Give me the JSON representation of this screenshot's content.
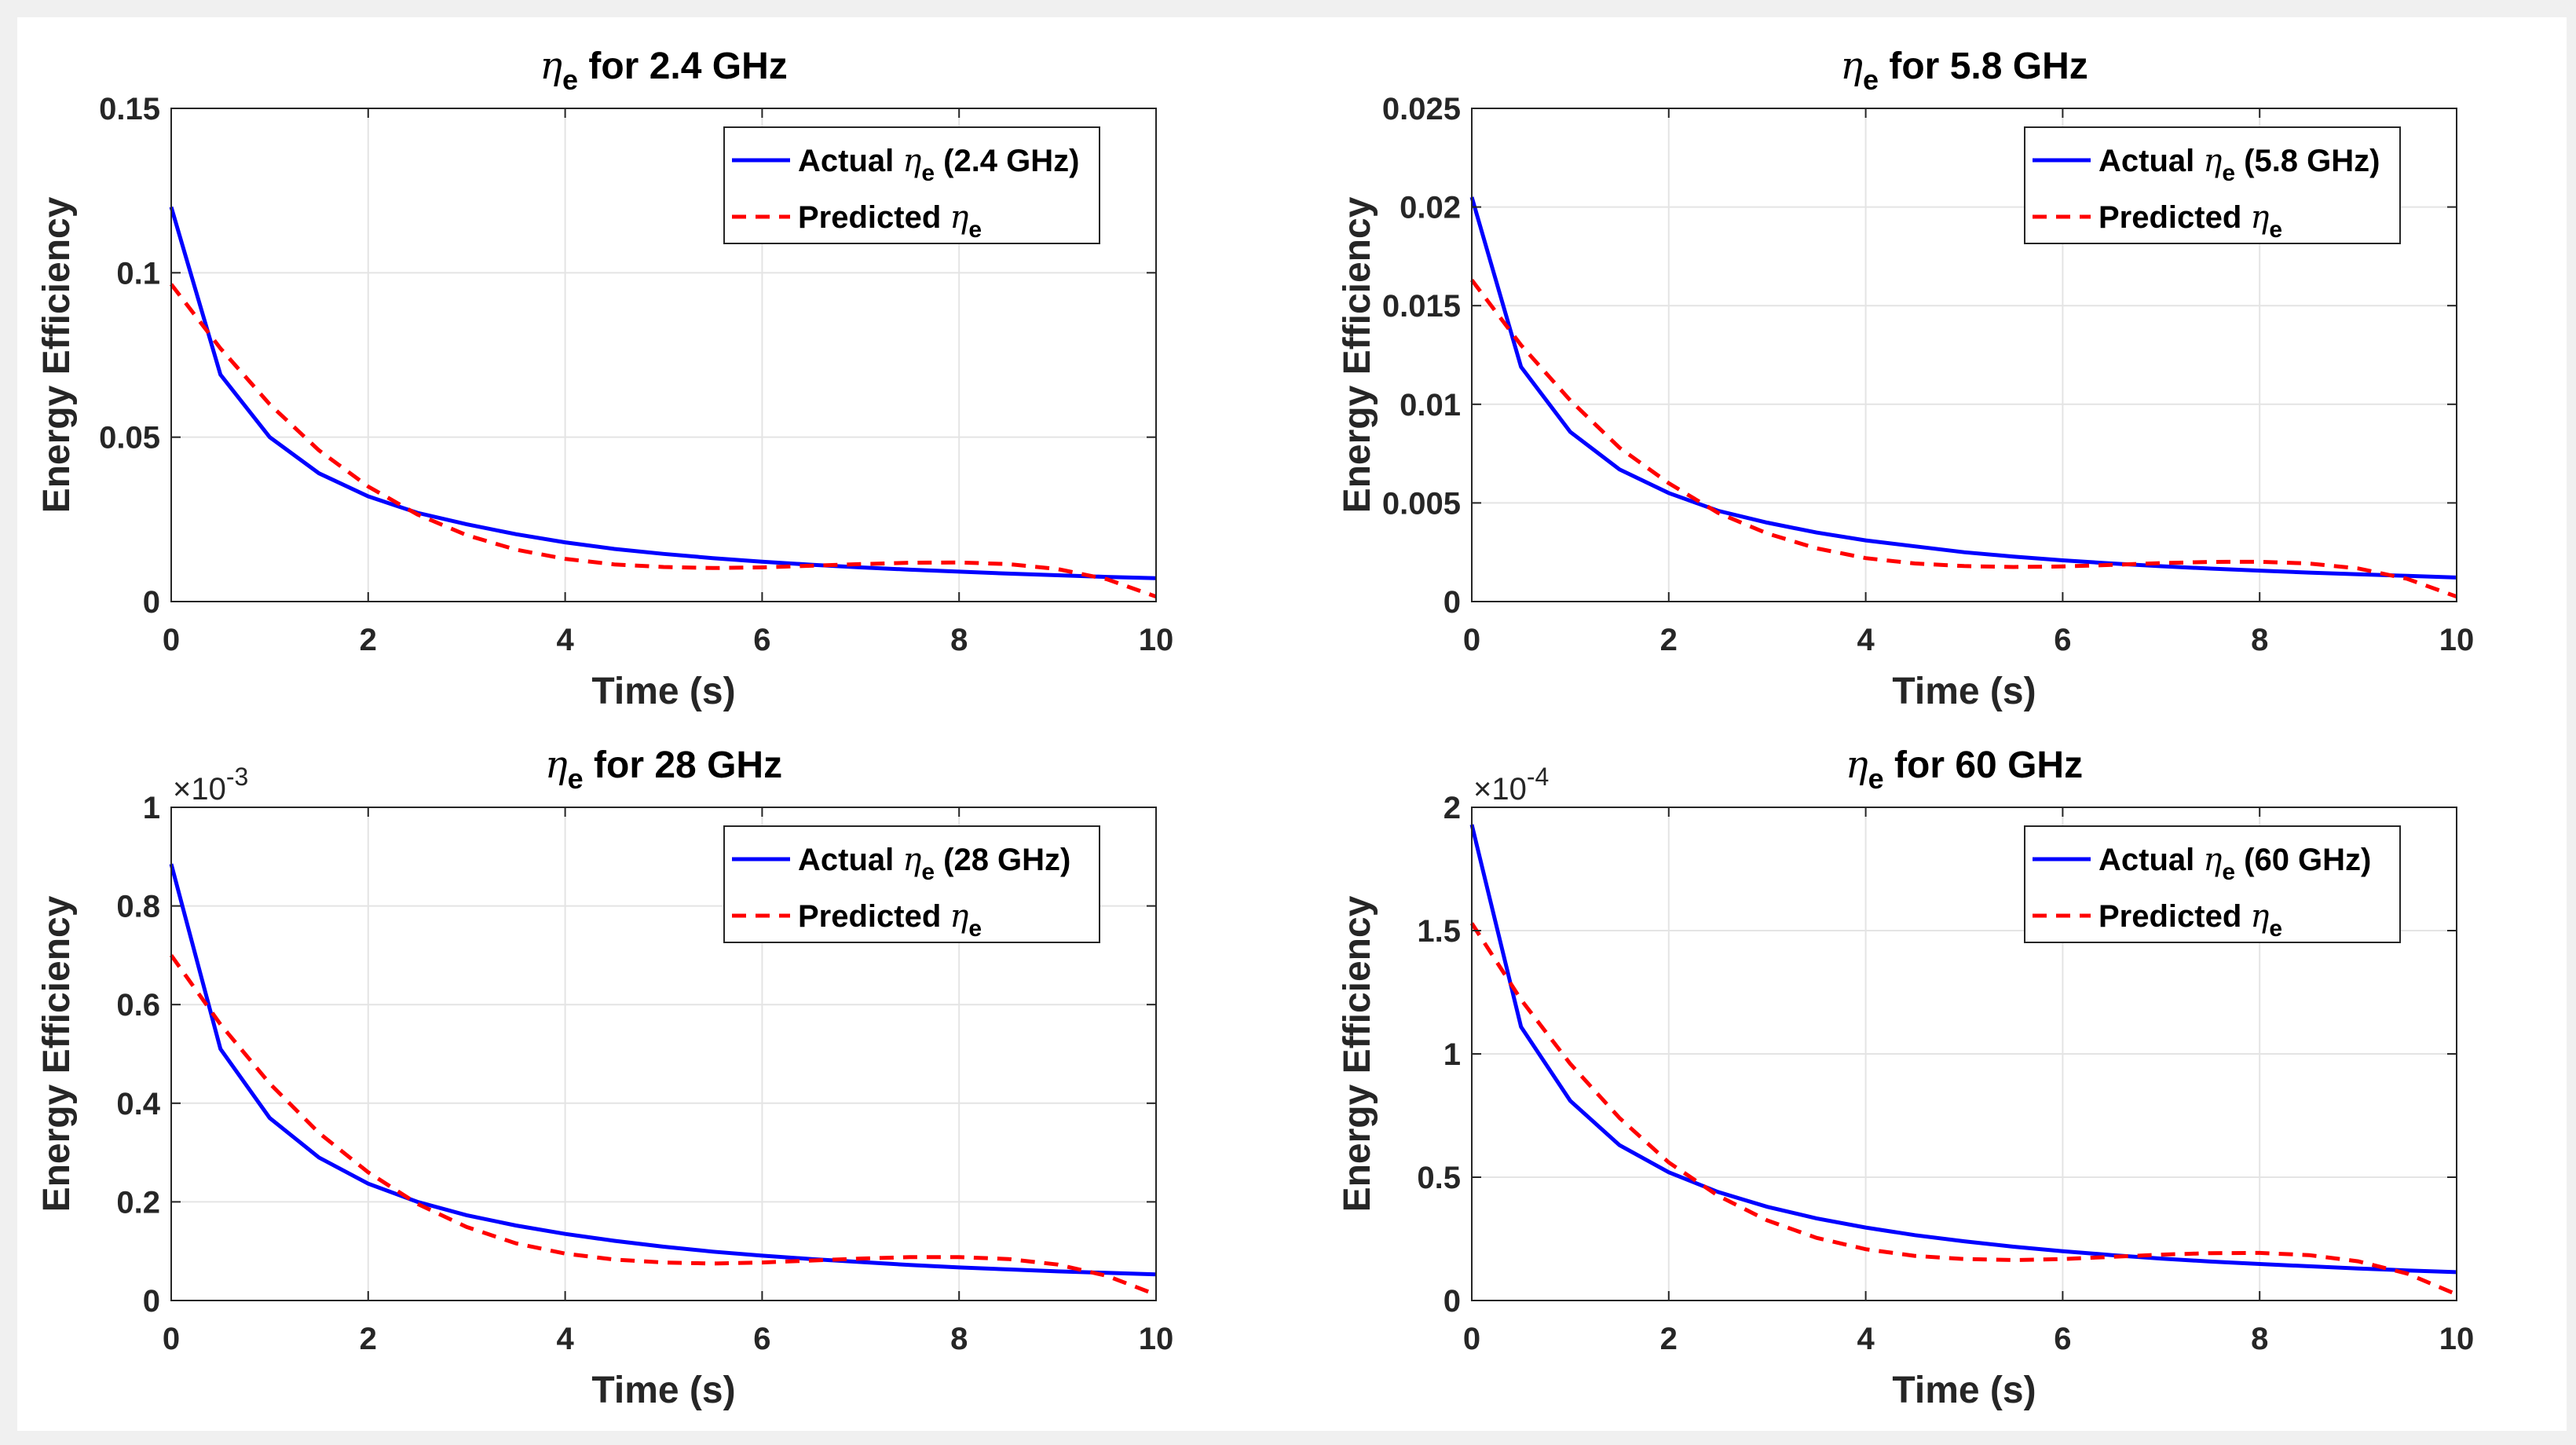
{
  "chart_data": [
    {
      "type": "line",
      "title": "η_e for 2.4 GHz",
      "title_symbol": "η",
      "title_subscript": "e",
      "title_suffix": " for 2.4 GHz",
      "xlabel": "Time (s)",
      "ylabel": "Energy Efficiency",
      "xlim": [
        0,
        10
      ],
      "ylim": [
        0,
        0.15
      ],
      "xticks": [
        0,
        2,
        4,
        6,
        8,
        10
      ],
      "xtick_labels": [
        "0",
        "2",
        "4",
        "6",
        "8",
        "10"
      ],
      "yticks": [
        0,
        0.05,
        0.1,
        0.15
      ],
      "ytick_labels": [
        "0",
        "0.05",
        "0.1",
        "0.15"
      ],
      "y_exponent": null,
      "grid": true,
      "legend_position": "top-right",
      "x": [
        0,
        0.5,
        1,
        1.5,
        2,
        2.5,
        3,
        3.5,
        4,
        4.5,
        5,
        5.5,
        6,
        6.5,
        7,
        7.5,
        8,
        8.5,
        9,
        9.5,
        10
      ],
      "series": [
        {
          "name": "Actual",
          "legend_prefix": "Actual ",
          "legend_symbol": "η",
          "legend_subscript": "e",
          "legend_suffix": " (2.4 GHz)",
          "color": "#0000ff",
          "style": "solid",
          "values": [
            0.12,
            0.069,
            0.05,
            0.039,
            0.032,
            0.027,
            0.0235,
            0.0205,
            0.018,
            0.016,
            0.0145,
            0.0132,
            0.0121,
            0.0112,
            0.0104,
            0.0097,
            0.0091,
            0.0085,
            0.008,
            0.0075,
            0.0071
          ]
        },
        {
          "name": "Predicted",
          "legend_prefix": "Predicted ",
          "legend_symbol": "η",
          "legend_subscript": "e",
          "legend_suffix": "",
          "color": "#ff0000",
          "style": "dashed",
          "values": [
            0.0965,
            0.077,
            0.06,
            0.046,
            0.035,
            0.0265,
            0.0202,
            0.0158,
            0.013,
            0.0113,
            0.0105,
            0.0102,
            0.0104,
            0.0109,
            0.0114,
            0.0118,
            0.0119,
            0.0114,
            0.0099,
            0.0068,
            0.0015
          ]
        }
      ]
    },
    {
      "type": "line",
      "title": "η_e for 5.8 GHz",
      "title_symbol": "η",
      "title_subscript": "e",
      "title_suffix": " for 5.8 GHz",
      "xlabel": "Time (s)",
      "ylabel": "Energy Efficiency",
      "xlim": [
        0,
        10
      ],
      "ylim": [
        0,
        0.025
      ],
      "xticks": [
        0,
        2,
        4,
        6,
        8,
        10
      ],
      "xtick_labels": [
        "0",
        "2",
        "4",
        "6",
        "8",
        "10"
      ],
      "yticks": [
        0,
        0.005,
        0.01,
        0.015,
        0.02,
        0.025
      ],
      "ytick_labels": [
        "0",
        "0.005",
        "0.01",
        "0.015",
        "0.02",
        "0.025"
      ],
      "y_exponent": null,
      "grid": true,
      "legend_position": "top-right",
      "x": [
        0,
        0.5,
        1,
        1.5,
        2,
        2.5,
        3,
        3.5,
        4,
        4.5,
        5,
        5.5,
        6,
        6.5,
        7,
        7.5,
        8,
        8.5,
        9,
        9.5,
        10
      ],
      "series": [
        {
          "name": "Actual",
          "legend_prefix": "Actual ",
          "legend_symbol": "η",
          "legend_subscript": "e",
          "legend_suffix": " (5.8 GHz)",
          "color": "#0000ff",
          "style": "solid",
          "values": [
            0.0205,
            0.0119,
            0.0086,
            0.0067,
            0.0055,
            0.0046,
            0.004,
            0.0035,
            0.0031,
            0.0028,
            0.0025,
            0.00228,
            0.00209,
            0.00193,
            0.00179,
            0.00167,
            0.00157,
            0.00147,
            0.00138,
            0.0013,
            0.00122
          ]
        },
        {
          "name": "Predicted",
          "legend_prefix": "Predicted ",
          "legend_symbol": "η",
          "legend_subscript": "e",
          "legend_suffix": "",
          "color": "#ff0000",
          "style": "dashed",
          "values": [
            0.0163,
            0.013,
            0.0102,
            0.0078,
            0.006,
            0.0045,
            0.00345,
            0.0027,
            0.0022,
            0.00193,
            0.0018,
            0.00175,
            0.00178,
            0.00186,
            0.00195,
            0.00201,
            0.00202,
            0.00193,
            0.00168,
            0.00115,
            0.00025
          ]
        }
      ]
    },
    {
      "type": "line",
      "title": "η_e for 28 GHz",
      "title_symbol": "η",
      "title_subscript": "e",
      "title_suffix": " for 28 GHz",
      "xlabel": "Time (s)",
      "ylabel": "Energy Efficiency",
      "xlim": [
        0,
        10
      ],
      "ylim": [
        0,
        1
      ],
      "xticks": [
        0,
        2,
        4,
        6,
        8,
        10
      ],
      "xtick_labels": [
        "0",
        "2",
        "4",
        "6",
        "8",
        "10"
      ],
      "yticks": [
        0,
        0.2,
        0.4,
        0.6,
        0.8,
        1
      ],
      "ytick_labels": [
        "0",
        "0.2",
        "0.4",
        "0.6",
        "0.8",
        "1"
      ],
      "y_exponent": {
        "base": "×10",
        "power": "-3"
      },
      "grid": true,
      "legend_position": "top-right",
      "x": [
        0,
        0.5,
        1,
        1.5,
        2,
        2.5,
        3,
        3.5,
        4,
        4.5,
        5,
        5.5,
        6,
        6.5,
        7,
        7.5,
        8,
        8.5,
        9,
        9.5,
        10
      ],
      "series": [
        {
          "name": "Actual",
          "legend_prefix": "Actual ",
          "legend_symbol": "η",
          "legend_subscript": "e",
          "legend_suffix": " (28 GHz)",
          "color": "#0000ff",
          "style": "solid",
          "values": [
            0.885,
            0.51,
            0.37,
            0.29,
            0.237,
            0.2,
            0.173,
            0.152,
            0.135,
            0.121,
            0.109,
            0.099,
            0.091,
            0.084,
            0.078,
            0.072,
            0.067,
            0.063,
            0.059,
            0.056,
            0.053
          ]
        },
        {
          "name": "Predicted",
          "legend_prefix": "Predicted ",
          "legend_symbol": "η",
          "legend_subscript": "e",
          "legend_suffix": "",
          "color": "#ff0000",
          "style": "dashed",
          "values": [
            0.7,
            0.56,
            0.44,
            0.34,
            0.26,
            0.196,
            0.149,
            0.116,
            0.095,
            0.083,
            0.077,
            0.075,
            0.077,
            0.081,
            0.085,
            0.088,
            0.088,
            0.084,
            0.073,
            0.05,
            0.012
          ]
        }
      ]
    },
    {
      "type": "line",
      "title": "η_e for 60 GHz",
      "title_symbol": "η",
      "title_subscript": "e",
      "title_suffix": " for 60 GHz",
      "xlabel": "Time (s)",
      "ylabel": "Energy Efficiency",
      "xlim": [
        0,
        10
      ],
      "ylim": [
        0,
        2
      ],
      "xticks": [
        0,
        2,
        4,
        6,
        8,
        10
      ],
      "xtick_labels": [
        "0",
        "2",
        "4",
        "6",
        "8",
        "10"
      ],
      "yticks": [
        0,
        0.5,
        1,
        1.5,
        2
      ],
      "ytick_labels": [
        "0",
        "0.5",
        "1",
        "1.5",
        "2"
      ],
      "y_exponent": {
        "base": "×10",
        "power": "-4"
      },
      "grid": true,
      "legend_position": "top-right",
      "x": [
        0,
        0.5,
        1,
        1.5,
        2,
        2.5,
        3,
        3.5,
        4,
        4.5,
        5,
        5.5,
        6,
        6.5,
        7,
        7.5,
        8,
        8.5,
        9,
        9.5,
        10
      ],
      "series": [
        {
          "name": "Actual",
          "legend_prefix": "Actual ",
          "legend_symbol": "η",
          "legend_subscript": "e",
          "legend_suffix": " (60 GHz)",
          "color": "#0000ff",
          "style": "solid",
          "values": [
            1.93,
            1.11,
            0.81,
            0.63,
            0.52,
            0.44,
            0.38,
            0.333,
            0.296,
            0.265,
            0.24,
            0.218,
            0.2,
            0.184,
            0.17,
            0.158,
            0.148,
            0.139,
            0.13,
            0.122,
            0.115
          ]
        },
        {
          "name": "Predicted",
          "legend_prefix": "Predicted ",
          "legend_symbol": "η",
          "legend_subscript": "e",
          "legend_suffix": "",
          "color": "#ff0000",
          "style": "dashed",
          "values": [
            1.53,
            1.22,
            0.96,
            0.74,
            0.56,
            0.425,
            0.325,
            0.254,
            0.208,
            0.181,
            0.168,
            0.164,
            0.168,
            0.177,
            0.186,
            0.192,
            0.193,
            0.184,
            0.159,
            0.109,
            0.025
          ]
        }
      ]
    }
  ]
}
